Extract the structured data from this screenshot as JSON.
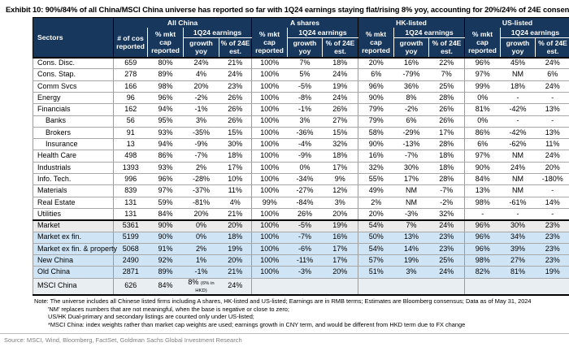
{
  "title": "Exhibit 10: 90%/84% of all China/MSCI China universe has reported so far with 1Q24 earnings staying flat/rising 8% yoy, accounting for 20%/24% of 24E consensus estimates",
  "colors": {
    "header_bg": "#17375D",
    "header_text": "#ffffff",
    "market_row_bg": "#ebebeb",
    "highlight_row_bg": "#cfe5f6",
    "msci_row_bg": "#e9eef3"
  },
  "table": {
    "headers": {
      "sectors": "Sectors",
      "groups": [
        "All China",
        "A shares",
        "HK-listed",
        "US-listed"
      ],
      "num_cos": "# of cos reported",
      "mkt_cap": "% mkt cap reported",
      "earnings": "1Q24 earnings",
      "growth": "growth yoy",
      "pct_est": "% of 24E est."
    },
    "column_order": [
      "# of cos reported",
      "% mkt cap reported",
      "growth yoy",
      "% of 24E est.",
      "% mkt cap reported",
      "growth yoy",
      "% of 24E est.",
      "% mkt cap reported",
      "growth yoy",
      "% of 24E est.",
      "% mkt cap reported",
      "growth yoy",
      "% of 24E est."
    ],
    "rows": [
      {
        "sector": "Cons. Disc.",
        "values": [
          "659",
          "80%",
          "24%",
          "21%",
          "100%",
          "7%",
          "18%",
          "20%",
          "16%",
          "22%",
          "96%",
          "45%",
          "24%"
        ]
      },
      {
        "sector": "Cons. Stap.",
        "values": [
          "278",
          "89%",
          "4%",
          "24%",
          "100%",
          "5%",
          "24%",
          "6%",
          "-79%",
          "7%",
          "97%",
          "NM",
          "6%"
        ]
      },
      {
        "sector": "Comm Svcs",
        "values": [
          "166",
          "98%",
          "20%",
          "23%",
          "100%",
          "-5%",
          "19%",
          "96%",
          "36%",
          "25%",
          "99%",
          "18%",
          "24%"
        ]
      },
      {
        "sector": "Energy",
        "values": [
          "96",
          "96%",
          "-2%",
          "26%",
          "100%",
          "-8%",
          "24%",
          "90%",
          "8%",
          "28%",
          "0%",
          "-",
          "-"
        ]
      },
      {
        "sector": "Financials",
        "values": [
          "162",
          "94%",
          "-1%",
          "26%",
          "100%",
          "-1%",
          "26%",
          "79%",
          "-2%",
          "26%",
          "81%",
          "-42%",
          "13%"
        ]
      },
      {
        "sector": "Banks",
        "indent": true,
        "values": [
          "56",
          "95%",
          "3%",
          "26%",
          "100%",
          "3%",
          "27%",
          "79%",
          "6%",
          "26%",
          "0%",
          "-",
          "-"
        ]
      },
      {
        "sector": "Brokers",
        "indent": true,
        "values": [
          "91",
          "93%",
          "-35%",
          "15%",
          "100%",
          "-36%",
          "15%",
          "58%",
          "-29%",
          "17%",
          "86%",
          "-42%",
          "13%"
        ]
      },
      {
        "sector": "Insurance",
        "indent": true,
        "values": [
          "13",
          "94%",
          "-9%",
          "30%",
          "100%",
          "-4%",
          "32%",
          "90%",
          "-13%",
          "28%",
          "6%",
          "-62%",
          "11%"
        ]
      },
      {
        "sector": "Health Care",
        "values": [
          "498",
          "86%",
          "-7%",
          "18%",
          "100%",
          "-9%",
          "18%",
          "16%",
          "-7%",
          "18%",
          "97%",
          "NM",
          "24%"
        ]
      },
      {
        "sector": "Industrials",
        "values": [
          "1393",
          "93%",
          "2%",
          "17%",
          "100%",
          "0%",
          "17%",
          "32%",
          "30%",
          "18%",
          "90%",
          "24%",
          "20%"
        ]
      },
      {
        "sector": "Info. Tech.",
        "values": [
          "996",
          "96%",
          "-28%",
          "10%",
          "100%",
          "-34%",
          "9%",
          "55%",
          "17%",
          "28%",
          "84%",
          "NM",
          "-180%"
        ]
      },
      {
        "sector": "Materials",
        "values": [
          "839",
          "97%",
          "-37%",
          "11%",
          "100%",
          "-27%",
          "12%",
          "49%",
          "NM",
          "-7%",
          "13%",
          "NM",
          "-"
        ]
      },
      {
        "sector": "Real Estate",
        "values": [
          "131",
          "59%",
          "-81%",
          "4%",
          "99%",
          "-84%",
          "3%",
          "2%",
          "NM",
          "-2%",
          "98%",
          "-61%",
          "14%"
        ]
      },
      {
        "sector": "Utilities",
        "values": [
          "131",
          "84%",
          "20%",
          "21%",
          "100%",
          "26%",
          "20%",
          "20%",
          "-3%",
          "32%",
          "-",
          "-",
          "-"
        ]
      },
      {
        "sector": "Market",
        "style": "market",
        "values": [
          "5361",
          "90%",
          "0%",
          "20%",
          "100%",
          "-5%",
          "19%",
          "54%",
          "7%",
          "24%",
          "96%",
          "30%",
          "23%"
        ]
      },
      {
        "sector": "Market ex fin.",
        "style": "blue",
        "values": [
          "5199",
          "90%",
          "0%",
          "18%",
          "100%",
          "-7%",
          "16%",
          "50%",
          "13%",
          "23%",
          "96%",
          "34%",
          "23%"
        ]
      },
      {
        "sector": "Market ex fin. & property",
        "style": "blue",
        "values": [
          "5068",
          "91%",
          "2%",
          "19%",
          "100%",
          "-6%",
          "17%",
          "54%",
          "14%",
          "23%",
          "96%",
          "39%",
          "23%"
        ]
      },
      {
        "sector": "New China",
        "style": "blue",
        "values": [
          "2490",
          "92%",
          "1%",
          "20%",
          "100%",
          "-11%",
          "17%",
          "57%",
          "19%",
          "25%",
          "98%",
          "27%",
          "23%"
        ]
      },
      {
        "sector": "Old China",
        "style": "blue",
        "values": [
          "2871",
          "89%",
          "-1%",
          "21%",
          "100%",
          "-3%",
          "20%",
          "51%",
          "3%",
          "24%",
          "82%",
          "81%",
          "19%"
        ]
      },
      {
        "sector": "MSCI China",
        "style": "msci",
        "growth_note": "(6% in HKD)",
        "values": [
          "626",
          "84%",
          "8%",
          "24%",
          "",
          "",
          "",
          "",
          "",
          "",
          "",
          "",
          ""
        ]
      }
    ]
  },
  "notes": [
    "Note: The universe includes all Chinese listed firms including A shares, HK-listed and US-listed; Earnings are in RMB terms; Estimates are Bloomberg consensus; Data as of May 31, 2024",
    "'NM' replaces numbers that are not meaningful, when the base is negative or close to zero;",
    "US/HK Dual-primary and secondary listings are counted only under US-listed;",
    "*MSCI China: index weights rather than market cap weights are used; earnings growth in CNY term, and would be different from HKD term due to FX change"
  ],
  "source": "Source: MSCI, Wind, Bloomberg, FactSet, Goldman Sachs Global Investment Research"
}
